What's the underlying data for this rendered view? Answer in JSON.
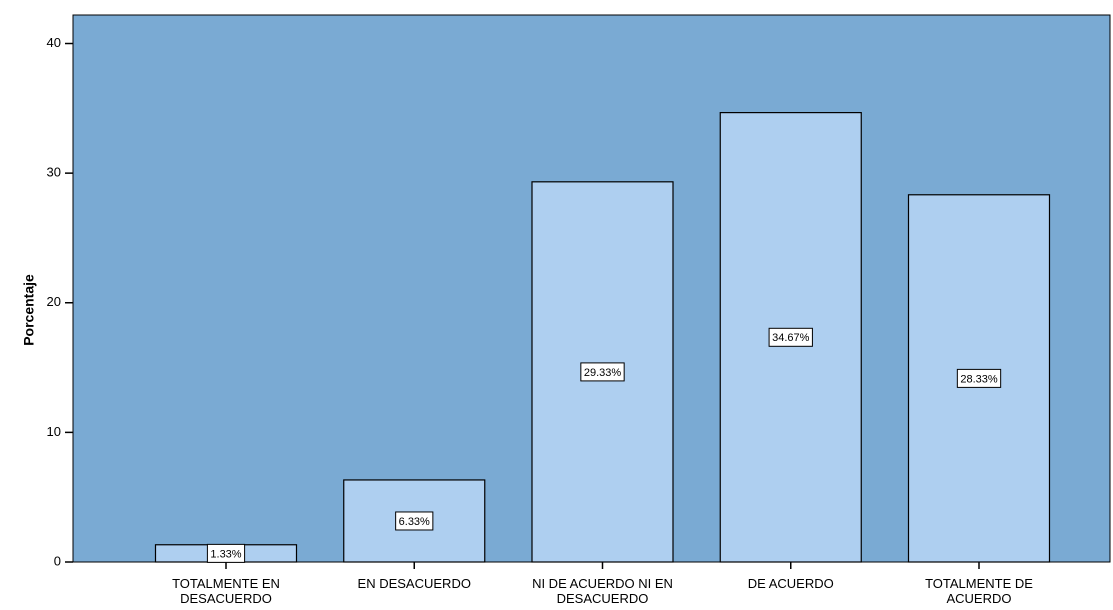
{
  "chart_data": {
    "type": "bar",
    "y_label": "Porcentaje",
    "categories": [
      "TOTALMENTE EN DESACUERDO",
      "EN DESACUERDO",
      "NI DE ACUERDO NI EN DESACUERDO",
      "DE ACUERDO",
      "TOTALMENTE DE ACUERDO"
    ],
    "values": [
      1.33,
      6.33,
      29.33,
      34.67,
      28.33
    ],
    "value_labels": [
      "1.33%",
      "6.33%",
      "29.33%",
      "34.67%",
      "28.33%"
    ],
    "color": "#aecff0",
    "background": "#7aaad3",
    "ylim": [
      0,
      42.2
    ],
    "yticks": [
      0,
      10,
      20,
      30,
      40
    ]
  }
}
